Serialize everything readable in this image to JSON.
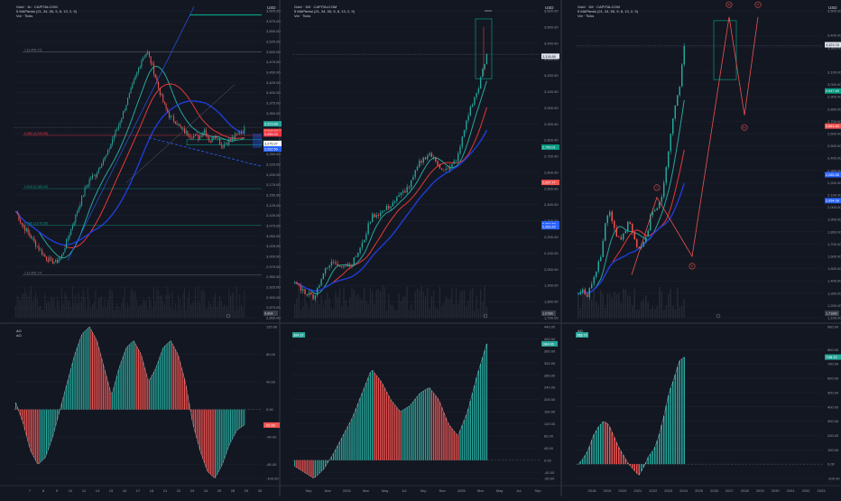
{
  "panels": [
    {
      "header": {
        "title": "Gold · 1h · CAPITALCOM",
        "indicator": "5 MAPlevisi (21, 34, 55, 5, 8, 13, 2, 9)",
        "volume": "Vol · Ticks"
      },
      "price_axis": [
        "3,600.00",
        "3,575.00",
        "3,550.00",
        "3,525.00",
        "3,500.00",
        "3,475.00",
        "3,450.00",
        "3,425.00",
        "3,400.00",
        "3,375.00",
        "3,350.00",
        "3,325.00",
        "3,300.00",
        "3,275.00",
        "3,250.00",
        "3,225.00",
        "3,200.00",
        "3,175.00",
        "3,150.00",
        "3,125.00",
        "3,100.00",
        "3,075.00",
        "3,050.00",
        "3,025.00",
        "3,000.00",
        "2,975.00",
        "2,950.00",
        "2,925.00",
        "2,900.00",
        "2,875.00",
        "2,850.00"
      ],
      "price_tags": [
        "3,323.88",
        "3,305.13",
        "3,299.23",
        "3,276.00",
        "3,275.97",
        "3,262.50"
      ],
      "fib_labels": [
        "1 (3,499.17)",
        "0.382 (3,295.59)",
        "0.618 (3,165.42)",
        "0.786 (3,076.58)",
        "1 (2,955.17)"
      ],
      "volume_tag": "9,004",
      "osc_axis": [
        "120.00",
        "80.00",
        "40.00",
        "0.00",
        "-40.00",
        "-80.00",
        "-100.00"
      ],
      "osc_tag": "-22.60",
      "time_axis": [
        "7",
        "8",
        "9",
        "10",
        "11",
        "14",
        "15",
        "16",
        "17",
        "18",
        "21",
        "22",
        "23",
        "24",
        "25",
        "28",
        "29",
        "30"
      ]
    },
    {
      "header": {
        "title": "Gold · 1W · CAPITALCOM",
        "indicator": "5 MAPlevisi (21, 34, 55, 5, 8, 13, 2, 9)",
        "volume": "Vol · Ticks"
      },
      "price_axis": [
        "3,600.00",
        "3,500.00",
        "3,400.00",
        "3,300.00",
        "3,200.00",
        "3,100.00",
        "3,000.00",
        "2,900.00",
        "2,800.00",
        "2,700.00",
        "2,600.00",
        "2,500.00",
        "2,400.00",
        "2,300.00",
        "2,200.00",
        "2,100.00",
        "2,000.00",
        "1,900.00",
        "1,800.00",
        "1,700.00"
      ],
      "price_tags": [
        "3,318.88",
        "2,756.01",
        "2,537.77",
        "2,281.52",
        "2,263.42"
      ],
      "volume_tag": "1.078K",
      "osc_axis": [
        "440.00",
        "400.00",
        "360.00",
        "320.00",
        "280.00",
        "240.00",
        "200.00",
        "160.00",
        "120.00",
        "80.00",
        "40.00",
        "0.00",
        "-40.00",
        "-60.00"
      ],
      "osc_tag": "384.06",
      "osc_tag_left": "384.37",
      "time_axis": [
        "Sep",
        "Nov",
        "2024",
        "Mar",
        "May",
        "Jul",
        "Sep",
        "Nov",
        "2025",
        "Mar",
        "May",
        "Jul",
        "Sep"
      ]
    },
    {
      "header": {
        "title": "Gold · 1M · CAPITALCOM",
        "indicator": "5 MAPlevisi (21, 34, 55, 5, 8, 13, 2, 9)",
        "volume": "Vol · Ticks"
      },
      "price_axis": [
        "3,600.00",
        "3,400.00",
        "3,300.00",
        "3,100.00",
        "3,000.00",
        "2,900.00",
        "2,800.00",
        "2,700.00",
        "2,600.00",
        "2,500.00",
        "2,400.00",
        "2,300.00",
        "2,200.00",
        "2,100.00",
        "2,000.00",
        "1,900.00",
        "1,800.00",
        "1,700.00",
        "1,600.00",
        "1,500.00",
        "1,400.00",
        "1,300.00",
        "1,200.00",
        "1,100.00"
      ],
      "price_tags": [
        "3,323.78",
        "2,947.49",
        "2,661.40",
        "2,265.35",
        "2,054.08"
      ],
      "volume_tag": "1.718M",
      "osc_axis": [
        "960.00",
        "800.00",
        "700.00",
        "600.00",
        "500.00",
        "400.00",
        "300.00",
        "200.00",
        "100.00",
        "0.00",
        "-100.00"
      ],
      "osc_tag": "748.12",
      "osc_tag_left": "725.79",
      "wave_labels": [
        "I",
        "II",
        "III",
        "IV",
        "V"
      ],
      "time_axis": [
        "2018",
        "2019",
        "2020",
        "2021",
        "2022",
        "2023",
        "2024",
        "2025",
        "2026",
        "2027",
        "2028",
        "2029",
        "2030",
        "2031",
        "2032",
        "2033"
      ]
    }
  ],
  "osc_headers": [
    "AO",
    "AO"
  ],
  "axis_unit": "USD",
  "chart_data": [
    {
      "type": "candlestick",
      "title": "Gold · 1h · CAPITALCOM",
      "ylim": [
        2850,
        3600
      ],
      "close_path": [
        3110,
        3080,
        3060,
        3040,
        3020,
        3000,
        2990,
        2985,
        3000,
        3040,
        3080,
        3120,
        3160,
        3190,
        3200,
        3230,
        3250,
        3290,
        3320,
        3360,
        3400,
        3440,
        3480,
        3500,
        3460,
        3410,
        3370,
        3340,
        3330,
        3310,
        3300,
        3295,
        3290,
        3310,
        3280,
        3300,
        3270,
        3280,
        3290,
        3300,
        3310
      ],
      "fib_levels": [
        3499.17,
        3295.59,
        3165.42,
        3076.58,
        2955.17
      ],
      "oscillator": [
        10,
        -20,
        -60,
        -80,
        -70,
        -40,
        0,
        40,
        80,
        110,
        120,
        100,
        60,
        20,
        60,
        90,
        100,
        80,
        40,
        60,
        90,
        100,
        80,
        40,
        -20,
        -60,
        -90,
        -100,
        -80,
        -50,
        -30,
        -22.6
      ]
    },
    {
      "type": "candlestick",
      "title": "Gold · 1W · CAPITALCOM",
      "ylim": [
        1700,
        3600
      ],
      "x": [
        "Sep",
        "Nov",
        "2024",
        "Mar",
        "May",
        "Jul",
        "Sep",
        "Nov",
        "2025",
        "Mar",
        "May"
      ],
      "close_path": [
        1920,
        1860,
        1830,
        1980,
        2050,
        2020,
        2040,
        2150,
        2330,
        2350,
        2400,
        2460,
        2520,
        2660,
        2720,
        2640,
        2610,
        2700,
        2950,
        3100,
        3320
      ],
      "oscillator": [
        -20,
        -40,
        -60,
        -30,
        20,
        80,
        140,
        220,
        300,
        260,
        200,
        160,
        180,
        220,
        240,
        200,
        120,
        80,
        160,
        280,
        384
      ]
    },
    {
      "type": "candlestick",
      "title": "Gold · 1M · CAPITALCOM",
      "ylim": [
        1100,
        3600
      ],
      "x": [
        "2018",
        "2019",
        "2020",
        "2021",
        "2022",
        "2023",
        "2024",
        "2025"
      ],
      "close_path": [
        1310,
        1340,
        1280,
        1380,
        1500,
        1600,
        1900,
        1950,
        1800,
        1720,
        1780,
        1900,
        1750,
        1650,
        1720,
        1800,
        1980,
        2000,
        2050,
        2300,
        2600,
        2800,
        3000,
        3320
      ],
      "oscillator": [
        0,
        40,
        100,
        200,
        260,
        300,
        280,
        200,
        120,
        60,
        0,
        -40,
        -80,
        -20,
        60,
        100,
        200,
        340,
        500,
        600,
        720,
        748.12
      ]
    }
  ]
}
